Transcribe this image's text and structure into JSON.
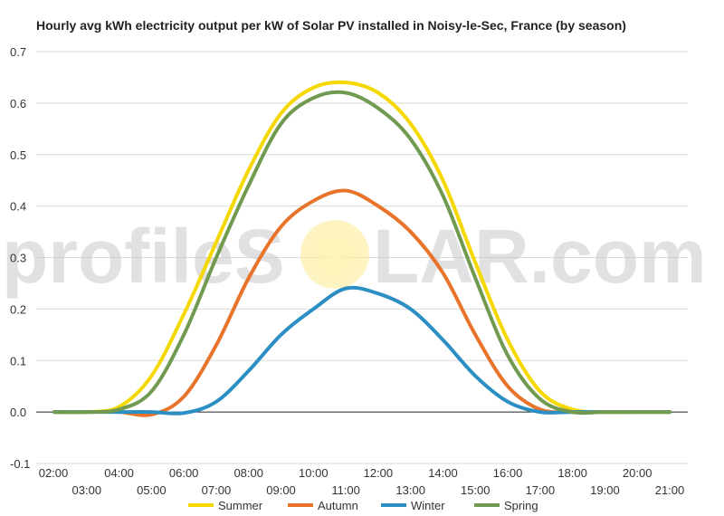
{
  "chart_data": {
    "type": "line",
    "title": "Hourly avg kWh electricity output per kW of Solar PV installed in Noisy-le-Sec, France (by season)",
    "xlabel": "",
    "ylabel": "",
    "ylim": [
      -0.1,
      0.7
    ],
    "y_ticks": [
      "-0.1",
      "0.0",
      "0.1",
      "0.2",
      "0.3",
      "0.4",
      "0.5",
      "0.6",
      "0.7"
    ],
    "x_labels": [
      "02:00",
      "03:00",
      "04:00",
      "05:00",
      "06:00",
      "07:00",
      "08:00",
      "09:00",
      "10:00",
      "11:00",
      "12:00",
      "13:00",
      "14:00",
      "15:00",
      "16:00",
      "17:00",
      "18:00",
      "19:00",
      "20:00",
      "21:00"
    ],
    "x": [
      "02:00",
      "03:00",
      "04:00",
      "05:00",
      "06:00",
      "07:00",
      "08:00",
      "09:00",
      "10:00",
      "11:00",
      "12:00",
      "13:00",
      "14:00",
      "15:00",
      "16:00",
      "17:00",
      "18:00",
      "19:00",
      "20:00",
      "21:00"
    ],
    "grid": true,
    "legend_position": "bottom",
    "watermark": {
      "left": "profileS",
      "right": "LAR.com"
    },
    "series": [
      {
        "name": "Summer",
        "color": "#f5d800",
        "values": [
          0.0,
          0.0,
          0.01,
          0.07,
          0.19,
          0.33,
          0.47,
          0.58,
          0.63,
          0.64,
          0.62,
          0.56,
          0.45,
          0.29,
          0.14,
          0.04,
          0.005,
          0.0,
          0.0,
          0.0
        ]
      },
      {
        "name": "Autumn",
        "color": "#e8732a",
        "values": [
          0.0,
          0.0,
          0.0,
          -0.005,
          0.03,
          0.13,
          0.26,
          0.36,
          0.41,
          0.43,
          0.4,
          0.35,
          0.27,
          0.15,
          0.05,
          0.005,
          0.0,
          0.0,
          0.0,
          0.0
        ]
      },
      {
        "name": "Winter",
        "color": "#2b8fc4",
        "values": [
          0.0,
          0.0,
          0.0,
          0.0,
          -0.002,
          0.02,
          0.08,
          0.15,
          0.2,
          0.24,
          0.23,
          0.2,
          0.14,
          0.07,
          0.02,
          0.0,
          0.0,
          0.0,
          0.0,
          0.0
        ]
      },
      {
        "name": "Spring",
        "color": "#6f9a4f",
        "values": [
          0.0,
          0.0,
          0.005,
          0.04,
          0.15,
          0.3,
          0.44,
          0.56,
          0.61,
          0.62,
          0.59,
          0.53,
          0.42,
          0.26,
          0.11,
          0.025,
          0.0,
          0.0,
          0.0,
          0.0
        ]
      }
    ]
  }
}
